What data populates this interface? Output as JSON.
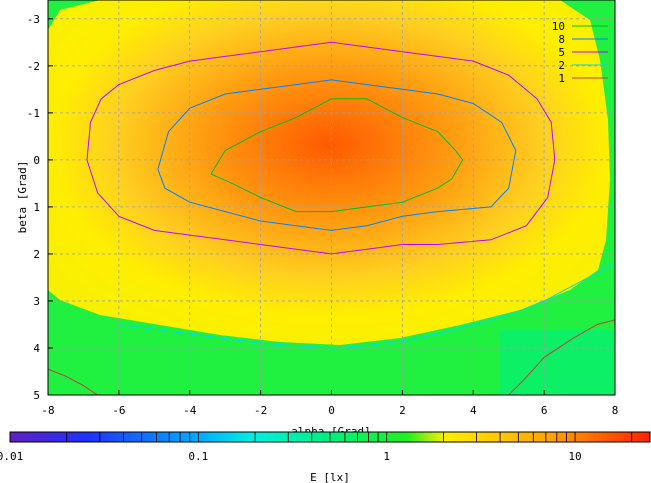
{
  "chart_data": {
    "type": "heatmap",
    "title": "",
    "xlabel": "alpha [Grad]",
    "ylabel": "beta [Grad]",
    "xlim": [
      -8,
      8
    ],
    "ylim": [
      5,
      -3.4
    ],
    "x_ticks": [
      "-8",
      "-6",
      "-4",
      "-2",
      "0",
      "2",
      "4",
      "6",
      "8"
    ],
    "y_ticks": [
      "-3",
      "-2",
      "-1",
      "0",
      "1",
      "2",
      "3",
      "4",
      "5"
    ],
    "grid": true,
    "colorbar": {
      "label": "E [lx]",
      "scale": "log",
      "range": [
        0.01,
        25
      ],
      "tick_labels": [
        "0.01",
        "0.1",
        "1",
        "10"
      ]
    },
    "legend": {
      "placement": "top-right",
      "entries": [
        {
          "label": "10",
          "color": "#00c000"
        },
        {
          "label": "8",
          "color": "#0080ff"
        },
        {
          "label": "5",
          "color": "#c000ff"
        },
        {
          "label": "2",
          "color": "#00e0e0"
        },
        {
          "label": "1",
          "color": "#c04040"
        }
      ]
    },
    "contours": [
      {
        "level": 10,
        "color": "#00c000",
        "points": [
          [
            -3.4,
            0.3
          ],
          [
            -3,
            -0.2
          ],
          [
            -2,
            -0.6
          ],
          [
            -1,
            -0.9
          ],
          [
            0,
            -1.3
          ],
          [
            1,
            -1.3
          ],
          [
            2,
            -0.9
          ],
          [
            3,
            -0.6
          ],
          [
            3.5,
            -0.2
          ],
          [
            3.7,
            0
          ],
          [
            3.4,
            0.4
          ],
          [
            3,
            0.6
          ],
          [
            2,
            0.9
          ],
          [
            1,
            1.0
          ],
          [
            0,
            1.1
          ],
          [
            -1,
            1.1
          ],
          [
            -2,
            0.8
          ],
          [
            -2.8,
            0.5
          ],
          [
            -3.4,
            0.3
          ]
        ]
      },
      {
        "level": 8,
        "color": "#0080ff",
        "points": [
          [
            -4.9,
            0.2
          ],
          [
            -4.6,
            -0.6
          ],
          [
            -4,
            -1.1
          ],
          [
            -3,
            -1.4
          ],
          [
            -2,
            -1.5
          ],
          [
            -1,
            -1.6
          ],
          [
            0,
            -1.7
          ],
          [
            1,
            -1.6
          ],
          [
            2,
            -1.5
          ],
          [
            3,
            -1.4
          ],
          [
            4,
            -1.2
          ],
          [
            4.8,
            -0.8
          ],
          [
            5.2,
            -0.2
          ],
          [
            5,
            0.6
          ],
          [
            4.5,
            1.0
          ],
          [
            3,
            1.1
          ],
          [
            2,
            1.2
          ],
          [
            1,
            1.4
          ],
          [
            0,
            1.5
          ],
          [
            -1,
            1.4
          ],
          [
            -2,
            1.3
          ],
          [
            -3,
            1.1
          ],
          [
            -4,
            0.9
          ],
          [
            -4.7,
            0.6
          ],
          [
            -4.9,
            0.2
          ]
        ]
      },
      {
        "level": 5,
        "color": "#c000ff",
        "points": [
          [
            -6.9,
            0
          ],
          [
            -6.8,
            -0.8
          ],
          [
            -6.5,
            -1.3
          ],
          [
            -6,
            -1.6
          ],
          [
            -5,
            -1.9
          ],
          [
            -4,
            -2.1
          ],
          [
            -3,
            -2.2
          ],
          [
            -2,
            -2.3
          ],
          [
            -1,
            -2.4
          ],
          [
            0,
            -2.5
          ],
          [
            1,
            -2.4
          ],
          [
            2,
            -2.3
          ],
          [
            3,
            -2.2
          ],
          [
            4,
            -2.1
          ],
          [
            5,
            -1.8
          ],
          [
            5.8,
            -1.3
          ],
          [
            6.2,
            -0.8
          ],
          [
            6.3,
            0
          ],
          [
            6.1,
            0.8
          ],
          [
            5.5,
            1.4
          ],
          [
            4.5,
            1.7
          ],
          [
            3,
            1.8
          ],
          [
            2,
            1.8
          ],
          [
            1,
            1.9
          ],
          [
            0,
            2.0
          ],
          [
            -1,
            1.9
          ],
          [
            -2,
            1.8
          ],
          [
            -3,
            1.7
          ],
          [
            -4,
            1.6
          ],
          [
            -5,
            1.5
          ],
          [
            -6,
            1.2
          ],
          [
            -6.6,
            0.7
          ],
          [
            -6.9,
            0
          ]
        ]
      },
      {
        "level": 2,
        "color": "#00e0e0",
        "points": [
          [
            -6,
            3.5
          ],
          [
            -5,
            3.6
          ],
          [
            -4,
            3.7
          ],
          [
            -3,
            3.8
          ],
          [
            -2,
            3.9
          ],
          [
            -1,
            3.95
          ],
          [
            0,
            4.0
          ],
          [
            1,
            3.95
          ],
          [
            2,
            3.85
          ],
          [
            3,
            3.7
          ],
          [
            4,
            3.5
          ],
          [
            5,
            3.3
          ],
          [
            6,
            3.0
          ],
          [
            7,
            2.6
          ],
          [
            8,
            2.2
          ]
        ]
      },
      {
        "level": 1,
        "color": "#c04040",
        "points": [
          [
            -8,
            4.45
          ],
          [
            -7.5,
            4.6
          ],
          [
            -7,
            4.8
          ],
          [
            -6.6,
            5.0
          ]
        ]
      },
      {
        "level": 1,
        "color": "#c04040",
        "points": [
          [
            5,
            5.0
          ],
          [
            5.4,
            4.7
          ],
          [
            6,
            4.2
          ],
          [
            6.8,
            3.8
          ],
          [
            7.5,
            3.5
          ],
          [
            8,
            3.4
          ]
        ]
      }
    ]
  }
}
